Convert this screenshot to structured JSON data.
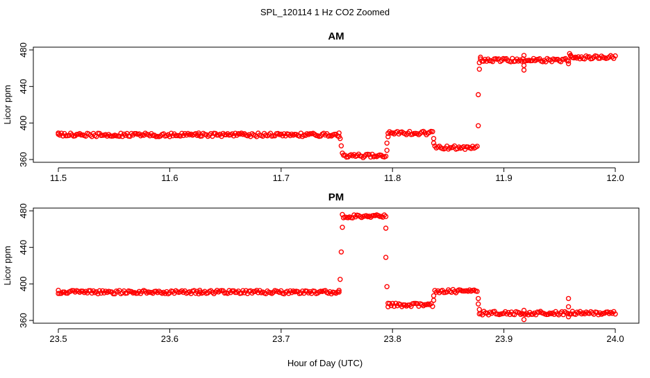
{
  "title": "SPL_120114  1 Hz CO2 Zoomed",
  "xlabel": "Hour of Day (UTC)",
  "colors": {
    "points": "#ff0000"
  },
  "chart_data": [
    {
      "type": "scatter",
      "title": "AM",
      "xlabel": "Hour of Day (UTC)",
      "ylabel": "Licor ppm",
      "xlim": [
        11.5,
        12.0
      ],
      "ylim": [
        360,
        480
      ],
      "xticks": [
        11.5,
        11.6,
        11.7,
        11.8,
        11.9,
        12.0
      ],
      "xtick_labels": [
        "11.5",
        "11.6",
        "11.7",
        "11.8",
        "11.9",
        "12.0"
      ],
      "yticks": [
        360,
        400,
        440,
        480
      ],
      "ytick_labels": [
        "360",
        "400",
        "440",
        "480"
      ],
      "series": [
        {
          "segments": [
            {
              "x": [
                11.5,
                11.752
              ],
              "y": 387
            },
            {
              "x": [
                11.756,
                11.794
              ],
              "y": 364
            },
            {
              "x": [
                11.796,
                11.836
              ],
              "y": 389
            },
            {
              "x": [
                11.838,
                11.876
              ],
              "y": 373
            },
            {
              "x": [
                11.879,
                11.958
              ],
              "y": 469
            },
            {
              "x": [
                11.96,
                12.0
              ],
              "y": 472
            }
          ],
          "outliers": [
            {
              "x": 11.5,
              "y": 389
            },
            {
              "x": 11.626,
              "y": 389
            },
            {
              "x": 11.752,
              "y": 389
            },
            {
              "x": 11.753,
              "y": 383
            },
            {
              "x": 11.754,
              "y": 375
            },
            {
              "x": 11.755,
              "y": 367
            },
            {
              "x": 11.795,
              "y": 370
            },
            {
              "x": 11.795,
              "y": 378
            },
            {
              "x": 11.796,
              "y": 385
            },
            {
              "x": 11.837,
              "y": 383
            },
            {
              "x": 11.837,
              "y": 378
            },
            {
              "x": 11.877,
              "y": 397
            },
            {
              "x": 11.877,
              "y": 431
            },
            {
              "x": 11.878,
              "y": 459
            },
            {
              "x": 11.878,
              "y": 466
            },
            {
              "x": 11.879,
              "y": 472
            },
            {
              "x": 11.918,
              "y": 474
            },
            {
              "x": 11.918,
              "y": 463
            },
            {
              "x": 11.918,
              "y": 458
            },
            {
              "x": 11.958,
              "y": 465
            },
            {
              "x": 11.959,
              "y": 476
            },
            {
              "x": 11.96,
              "y": 474
            }
          ]
        }
      ]
    },
    {
      "type": "scatter",
      "title": "PM",
      "xlabel": "Hour of Day (UTC)",
      "ylabel": "Licor ppm",
      "xlim": [
        23.5,
        24.0
      ],
      "ylim": [
        360,
        480
      ],
      "xticks": [
        23.5,
        23.6,
        23.7,
        23.8,
        23.9,
        24.0
      ],
      "xtick_labels": [
        "23.5",
        "23.6",
        "23.7",
        "23.8",
        "23.9",
        "24.0"
      ],
      "yticks": [
        360,
        400,
        440,
        480
      ],
      "ytick_labels": [
        "360",
        "400",
        "440",
        "480"
      ],
      "series": [
        {
          "segments": [
            {
              "x": [
                23.5,
                23.752
              ],
              "y": 391
            },
            {
              "x": [
                23.756,
                23.794
              ],
              "y": 474
            },
            {
              "x": [
                23.796,
                23.836
              ],
              "y": 377
            },
            {
              "x": [
                23.838,
                23.876
              ],
              "y": 392
            },
            {
              "x": [
                23.878,
                24.0
              ],
              "y": 368
            }
          ],
          "outliers": [
            {
              "x": 23.5,
              "y": 393
            },
            {
              "x": 23.627,
              "y": 393
            },
            {
              "x": 23.752,
              "y": 393
            },
            {
              "x": 23.753,
              "y": 405
            },
            {
              "x": 23.754,
              "y": 435
            },
            {
              "x": 23.755,
              "y": 462
            },
            {
              "x": 23.755,
              "y": 476
            },
            {
              "x": 23.794,
              "y": 461
            },
            {
              "x": 23.794,
              "y": 429
            },
            {
              "x": 23.795,
              "y": 397
            },
            {
              "x": 23.796,
              "y": 375
            },
            {
              "x": 23.837,
              "y": 382
            },
            {
              "x": 23.837,
              "y": 387
            },
            {
              "x": 23.877,
              "y": 384
            },
            {
              "x": 23.877,
              "y": 378
            },
            {
              "x": 23.878,
              "y": 372
            },
            {
              "x": 23.918,
              "y": 371
            },
            {
              "x": 23.918,
              "y": 361
            },
            {
              "x": 23.958,
              "y": 384
            },
            {
              "x": 23.958,
              "y": 375
            },
            {
              "x": 23.958,
              "y": 364
            }
          ]
        }
      ]
    }
  ]
}
